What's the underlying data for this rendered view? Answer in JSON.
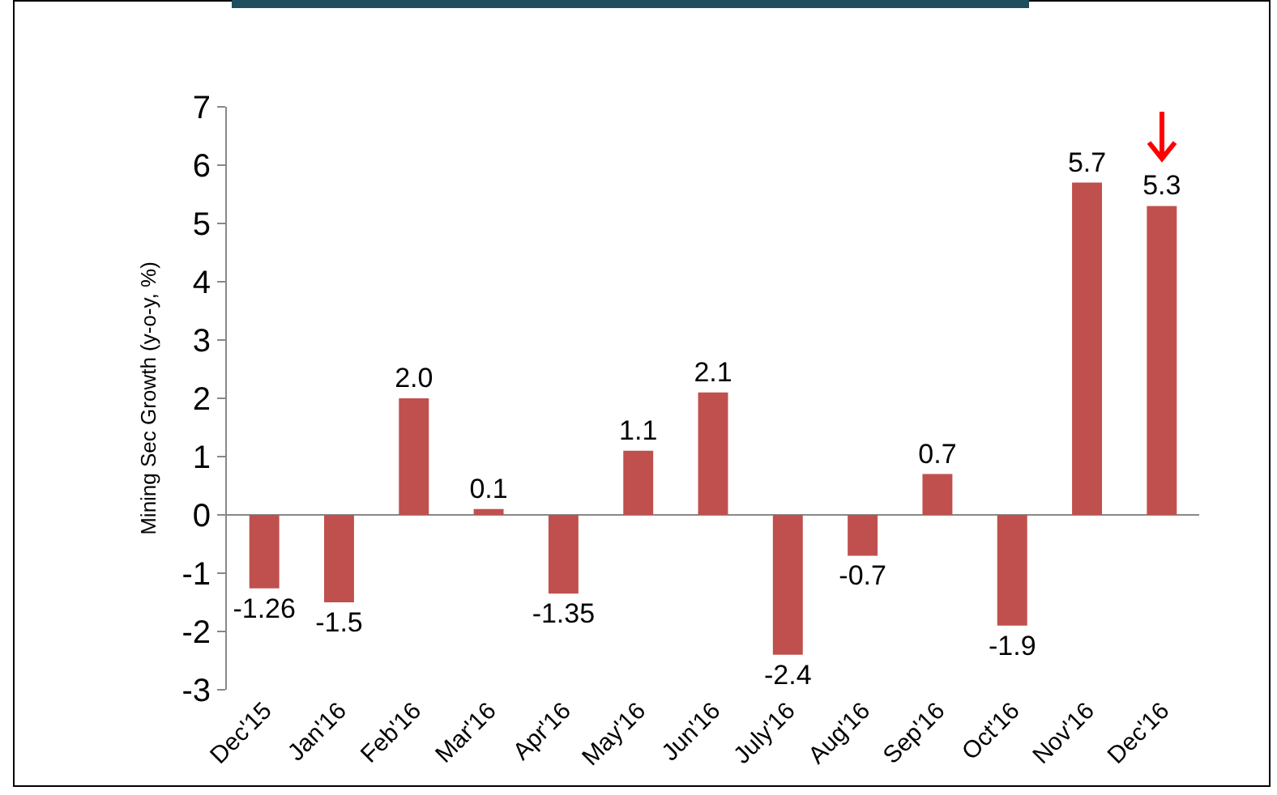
{
  "chart_data": {
    "type": "bar",
    "ylabel": "Mining Sec Growth (y-o-y, %)",
    "categories": [
      "Dec'15",
      "Jan'16",
      "Feb'16",
      "Mar'16",
      "Apr'16",
      "May'16",
      "Jun'16",
      "July'16",
      "Aug'16",
      "Sep'16",
      "Oct'16",
      "Nov'16",
      "Dec'16"
    ],
    "values": [
      -1.26,
      -1.5,
      2.0,
      0.1,
      -1.35,
      1.1,
      2.1,
      -2.4,
      -0.7,
      0.7,
      -1.9,
      5.7,
      5.3
    ],
    "value_labels": [
      "-1.26",
      "-1.5",
      "2.0",
      "0.1",
      "-1.35",
      "1.1",
      "2.1",
      "-2.4",
      "-0.7",
      "0.7",
      "-1.9",
      "5.7",
      "5.3"
    ],
    "color": "#c0504d",
    "ylim": [
      -3,
      7
    ],
    "yticks": [
      -3,
      -2,
      -1,
      0,
      1,
      2,
      3,
      4,
      5,
      6,
      7
    ],
    "legend": false
  }
}
